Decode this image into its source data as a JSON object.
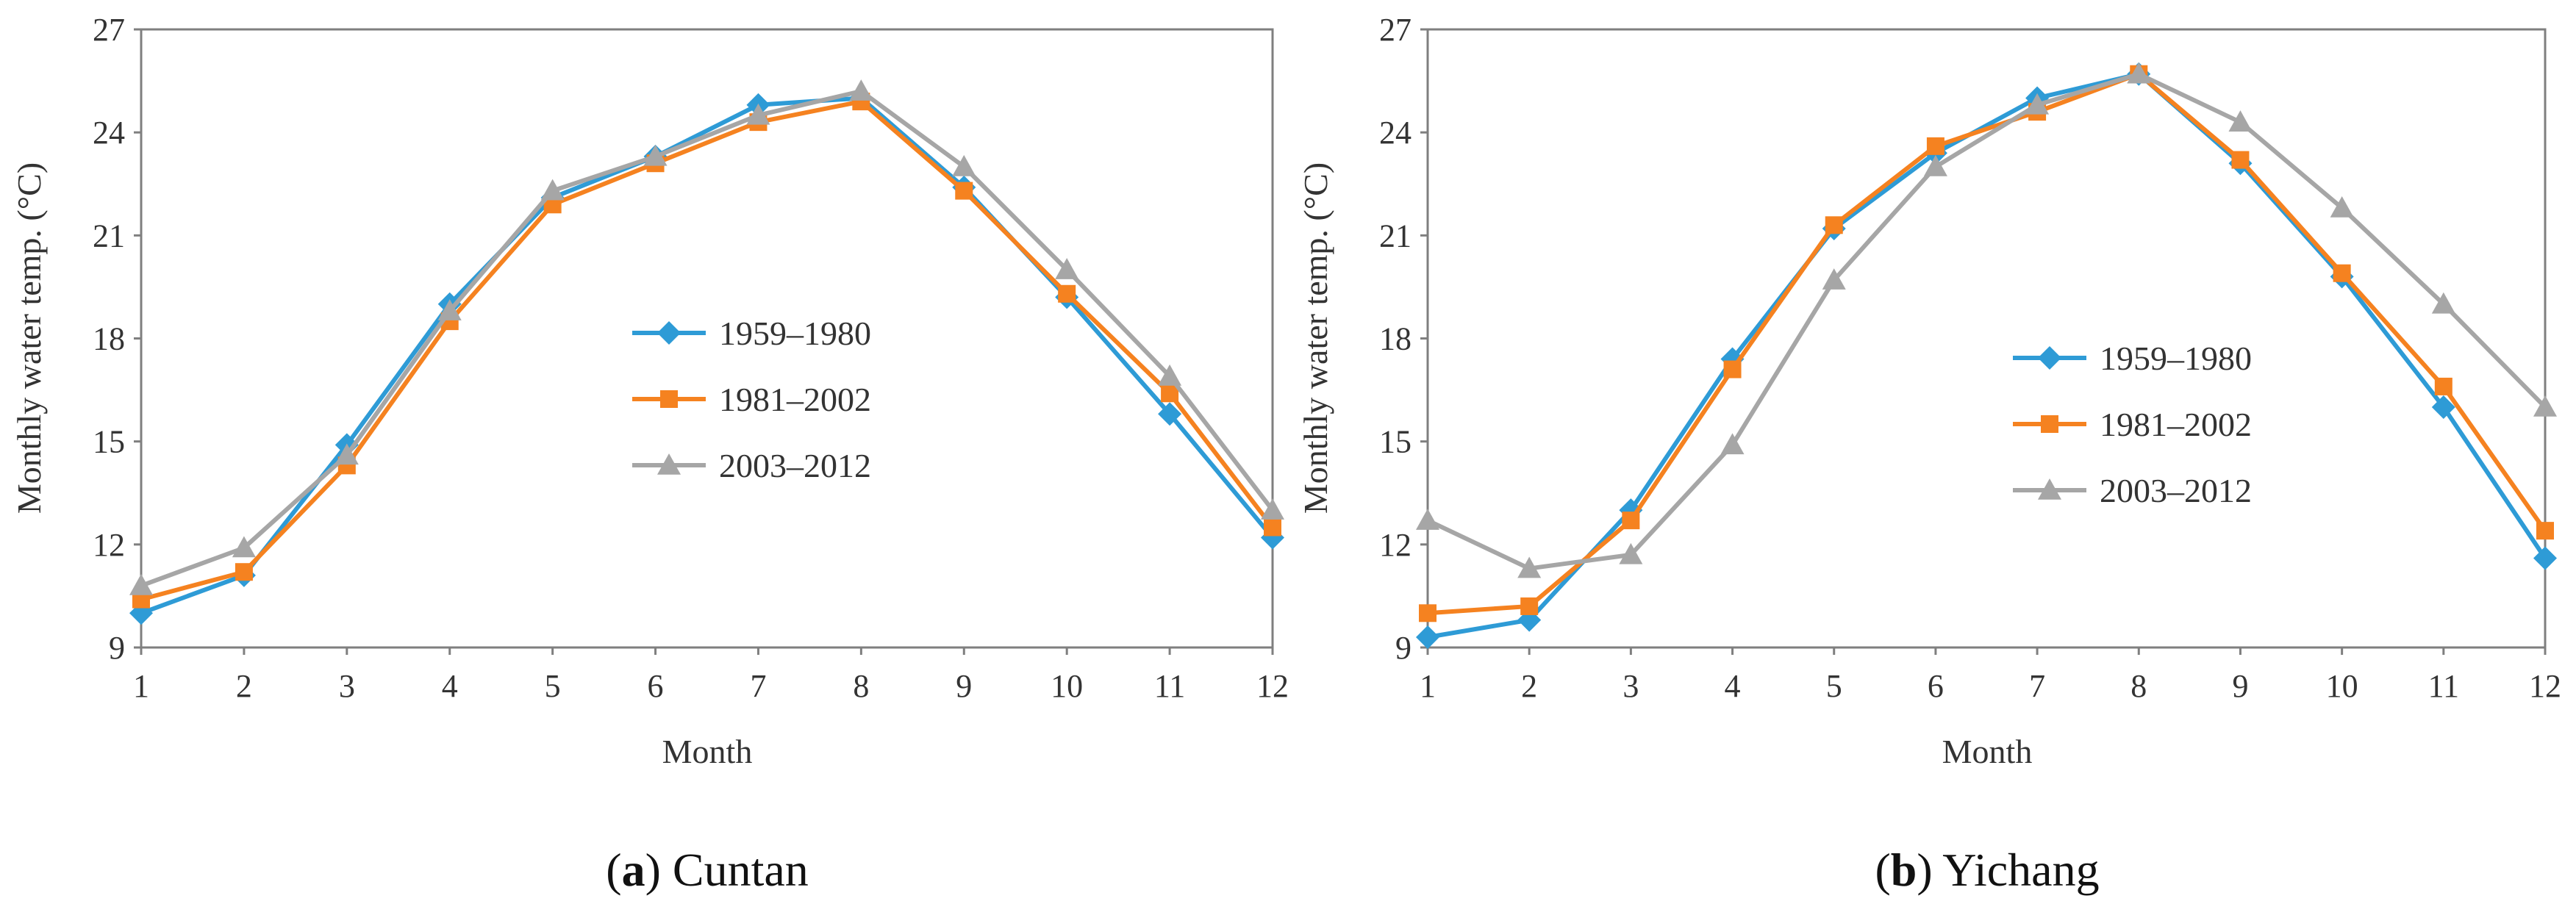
{
  "colors": {
    "series_1": "#2E9BD6",
    "series_2": "#F58220",
    "series_3": "#A6A6A6",
    "axis": "#7F7F7F"
  },
  "chart_data": [
    {
      "type": "line",
      "caption_letter": "a",
      "caption_open": "(",
      "caption_close": ")",
      "caption_name": " Cuntan",
      "xlabel": "Month",
      "ylabel": "Monthly water temp. (°C)",
      "x": [
        1,
        2,
        3,
        4,
        5,
        6,
        7,
        8,
        9,
        10,
        11,
        12
      ],
      "xticks": [
        "1",
        "2",
        "3",
        "4",
        "5",
        "6",
        "7",
        "8",
        "9",
        "10",
        "11",
        "12"
      ],
      "ylim": [
        9,
        27
      ],
      "yticks": [
        9,
        12,
        15,
        18,
        21,
        24,
        27
      ],
      "legend_position": "center",
      "series": [
        {
          "name": "1959–1980",
          "marker": "diamond",
          "values": [
            10.0,
            11.1,
            14.9,
            19.0,
            22.1,
            23.3,
            24.8,
            25.0,
            22.4,
            19.2,
            15.8,
            12.2
          ]
        },
        {
          "name": "1981–2002",
          "marker": "square",
          "values": [
            10.4,
            11.2,
            14.3,
            18.5,
            21.9,
            23.1,
            24.3,
            24.9,
            22.3,
            19.3,
            16.4,
            12.5
          ]
        },
        {
          "name": "2003–2012",
          "marker": "triangle",
          "values": [
            10.8,
            11.9,
            14.6,
            18.8,
            22.3,
            23.3,
            24.5,
            25.2,
            23.0,
            20.0,
            16.9,
            13.0
          ]
        }
      ]
    },
    {
      "type": "line",
      "caption_letter": "b",
      "caption_open": "(",
      "caption_close": ")",
      "caption_name": " Yichang",
      "xlabel": "Month",
      "ylabel": "Monthly water temp. (°C)",
      "x": [
        1,
        2,
        3,
        4,
        5,
        6,
        7,
        8,
        9,
        10,
        11,
        12
      ],
      "xticks": [
        "1",
        "2",
        "3",
        "4",
        "5",
        "6",
        "7",
        "8",
        "9",
        "10",
        "11",
        "12"
      ],
      "ylim": [
        9,
        27
      ],
      "yticks": [
        9,
        12,
        15,
        18,
        21,
        24,
        27
      ],
      "legend_position": "center-right",
      "series": [
        {
          "name": "1959–1980",
          "marker": "diamond",
          "values": [
            9.3,
            9.8,
            13.0,
            17.4,
            21.2,
            23.4,
            25.0,
            25.7,
            23.1,
            19.8,
            16.0,
            11.6
          ]
        },
        {
          "name": "1981–2002",
          "marker": "square",
          "values": [
            10.0,
            10.2,
            12.7,
            17.1,
            21.3,
            23.6,
            24.6,
            25.7,
            23.2,
            19.9,
            16.6,
            12.4
          ]
        },
        {
          "name": "2003–2012",
          "marker": "triangle",
          "values": [
            12.7,
            11.3,
            11.7,
            14.9,
            19.7,
            23.0,
            24.8,
            25.7,
            24.3,
            21.8,
            19.0,
            16.0
          ]
        }
      ]
    }
  ]
}
